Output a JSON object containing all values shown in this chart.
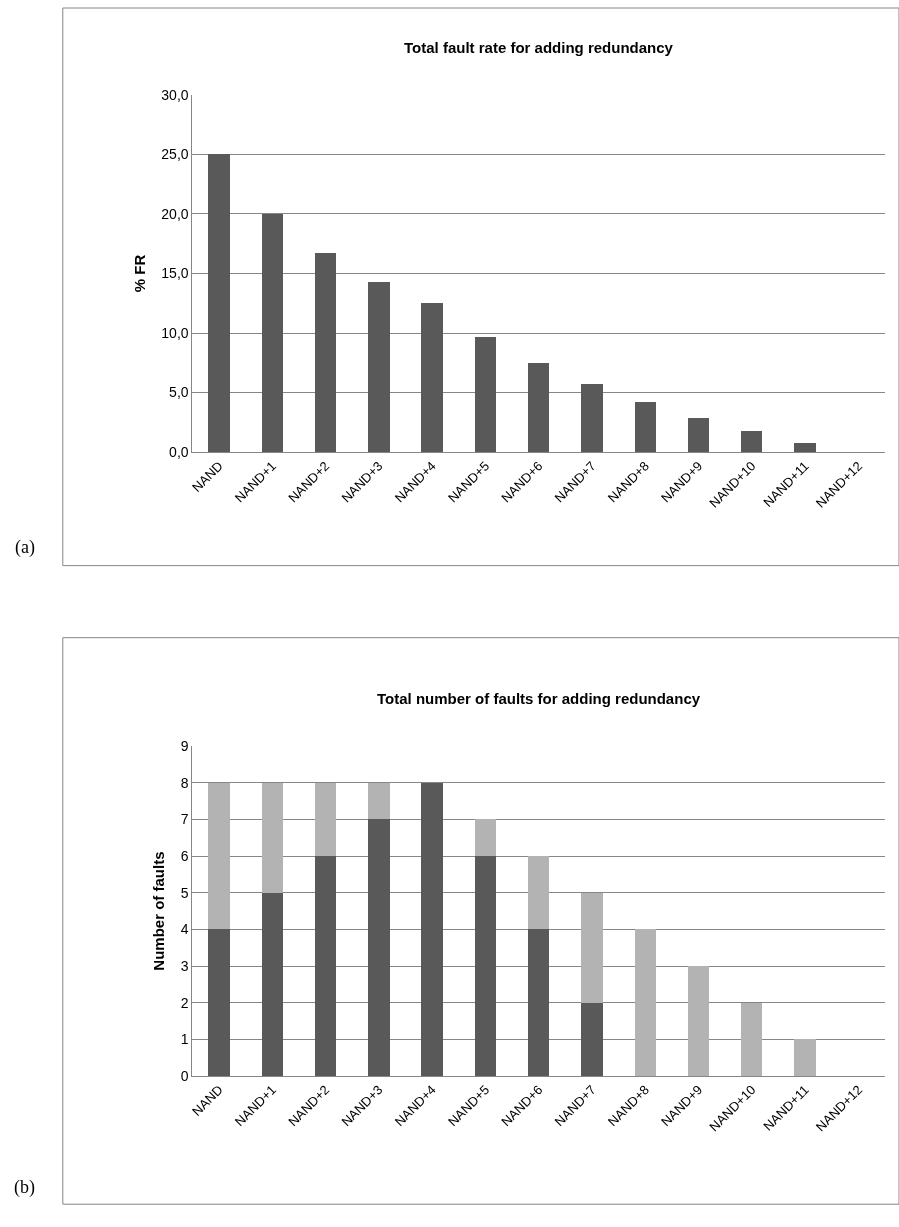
{
  "chart_data": [
    {
      "type": "bar",
      "title": "Total fault rate for adding redundancy",
      "ylabel": "% FR",
      "annotations": [
        "(a)"
      ],
      "categories": [
        "NAND",
        "NAND+1",
        "NAND+2",
        "NAND+3",
        "NAND+4",
        "NAND+5",
        "NAND+6",
        "NAND+7",
        "NAND+8",
        "NAND+9",
        "NAND+10",
        "NAND+11",
        "NAND+12"
      ],
      "values": [
        25.0,
        20.0,
        16.7,
        14.3,
        12.5,
        9.7,
        7.5,
        5.7,
        4.2,
        2.9,
        1.8,
        0.8,
        0
      ],
      "color": "#595959",
      "ylim": [
        0,
        30
      ],
      "yticks": [
        {
          "value": 0,
          "label": "0,0"
        },
        {
          "value": 5,
          "label": "5,0"
        },
        {
          "value": 10,
          "label": "10,0"
        },
        {
          "value": 15,
          "label": "15,0"
        },
        {
          "value": 20,
          "label": "20,0"
        },
        {
          "value": 25,
          "label": "25,0"
        },
        {
          "value": 30,
          "label": "30,0"
        }
      ],
      "grid": "y"
    },
    {
      "type": "bar",
      "title": "Total number of faults for adding redundancy",
      "ylabel": "Number of faults",
      "annotations": [
        "(b)"
      ],
      "categories": [
        "NAND",
        "NAND+1",
        "NAND+2",
        "NAND+3",
        "NAND+4",
        "NAND+5",
        "NAND+6",
        "NAND+7",
        "NAND+8",
        "NAND+9",
        "NAND+10",
        "NAND+11",
        "NAND+12"
      ],
      "stacked": true,
      "series": [
        {
          "color": "#595959",
          "values": [
            4,
            5,
            6,
            7,
            8,
            6,
            4,
            2,
            0,
            0,
            0,
            0,
            0
          ]
        },
        {
          "color": "#b3b3b3",
          "values": [
            4,
            3,
            2,
            1,
            0,
            1,
            2,
            3,
            4,
            3,
            2,
            1,
            0
          ]
        }
      ],
      "ylim": [
        0,
        9
      ],
      "yticks": [
        0,
        1,
        2,
        3,
        4,
        5,
        6,
        7,
        8,
        9
      ],
      "grid": "y"
    }
  ]
}
